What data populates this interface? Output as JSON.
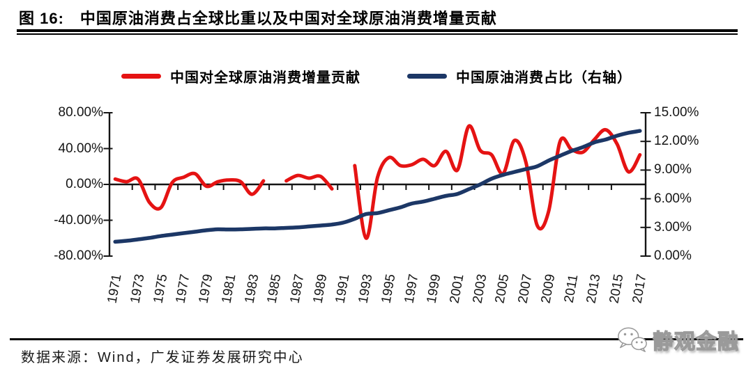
{
  "page": {
    "title": "图 16:　中国原油消费占全球比重以及中国对全球原油消费增量贡献",
    "source_text": "数据来源：Wind，广发证券发展研究中心",
    "watermark_text": "静观金融"
  },
  "legend": {
    "items": [
      {
        "label": "中国对全球原油消费增量贡献",
        "color": "#e51313"
      },
      {
        "label": "中国原油消费占比（右轴）",
        "color": "#1c3766"
      }
    ]
  },
  "chart_data": {
    "type": "line",
    "title": "中国原油消费占全球比重以及中国对全球原油消费增量贡献",
    "grid": false,
    "legend_position": "top",
    "x": [
      1971,
      1972,
      1973,
      1974,
      1975,
      1976,
      1977,
      1978,
      1979,
      1980,
      1981,
      1982,
      1983,
      1984,
      1985,
      1986,
      1987,
      1988,
      1989,
      1990,
      1991,
      1992,
      1993,
      1994,
      1995,
      1996,
      1997,
      1998,
      1999,
      2000,
      2001,
      2002,
      2003,
      2004,
      2005,
      2006,
      2007,
      2008,
      2009,
      2010,
      2011,
      2012,
      2013,
      2014,
      2015,
      2016,
      2017
    ],
    "x_tick_labels": [
      "1971",
      "1973",
      "1975",
      "1977",
      "1979",
      "1981",
      "1983",
      "1985",
      "1987",
      "1989",
      "1991",
      "1993",
      "1995",
      "1997",
      "1999",
      "2001",
      "2003",
      "2005",
      "2007",
      "2009",
      "2011",
      "2013",
      "2015",
      "2017"
    ],
    "left_axis": {
      "min": -80,
      "max": 80,
      "tick_values": [
        80,
        40,
        0,
        -40,
        -80
      ],
      "tick_labels": [
        "80.00%",
        "40.00%",
        "0.00%",
        "-40.00%",
        "-80.00%"
      ]
    },
    "right_axis": {
      "min": 0,
      "max": 15,
      "tick_values": [
        15,
        12,
        9,
        6,
        3,
        0
      ],
      "tick_labels": [
        "15.00%",
        "12.00%",
        "9.00%",
        "6.00%",
        "3.00%",
        "0.00%"
      ]
    },
    "series": [
      {
        "name": "中国对全球原油消费增量贡献",
        "axis": "left",
        "unit": "%",
        "color": "#e51313",
        "values": [
          6,
          3,
          6,
          -20,
          -26,
          2,
          8,
          12,
          -2,
          3,
          5,
          3,
          -11,
          4,
          null,
          4,
          10,
          7,
          9,
          -5,
          null,
          21,
          -60,
          8,
          30,
          21,
          22,
          28,
          21,
          37,
          16,
          65,
          38,
          33,
          12,
          49,
          25,
          -46,
          -30,
          48,
          39,
          36,
          50,
          61,
          45,
          14,
          33
        ]
      },
      {
        "name": "中国原油消费占比（右轴）",
        "axis": "right",
        "unit": "%",
        "color": "#1c3766",
        "values": [
          1.5,
          1.6,
          1.75,
          1.9,
          2.1,
          2.25,
          2.4,
          2.55,
          2.7,
          2.8,
          2.78,
          2.8,
          2.85,
          2.9,
          2.9,
          2.95,
          3.0,
          3.1,
          3.2,
          3.3,
          3.5,
          3.9,
          4.4,
          4.5,
          4.8,
          5.1,
          5.5,
          5.7,
          6.0,
          6.3,
          6.5,
          7.0,
          7.5,
          8.1,
          8.5,
          8.8,
          9.1,
          9.4,
          10.0,
          10.5,
          11.0,
          11.4,
          11.9,
          12.2,
          12.6,
          12.9,
          13.1
        ]
      }
    ]
  }
}
